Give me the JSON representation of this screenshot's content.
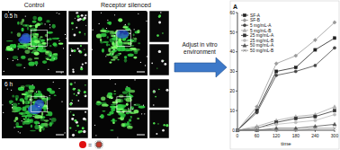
{
  "panels": {
    "control": "Control",
    "silenced": "Receptor silenced",
    "times": [
      "0.5 h",
      "6 h"
    ]
  },
  "arrow_label": "Adjust in vitro environment",
  "icon_equals": "=",
  "chart_data": {
    "type": "line",
    "title": "A",
    "x_label": "time",
    "x": [
      0,
      60,
      120,
      180,
      240,
      300
    ],
    "xlim": [
      0,
      300
    ],
    "xticks": [
      0,
      60,
      120,
      180,
      240,
      300
    ],
    "ylim": [
      0,
      60
    ],
    "yticks": [
      0,
      10,
      20,
      30,
      40,
      50,
      60
    ],
    "legend": "top-left",
    "series": [
      {
        "name": "SF-A",
        "color": "#222222",
        "marker": "square",
        "values": [
          0,
          10,
          30,
          32,
          41,
          47
        ]
      },
      {
        "name": "SF-B",
        "color": "#999999",
        "marker": "diamond",
        "values": [
          0,
          12,
          34,
          38,
          46,
          55
        ]
      },
      {
        "name": "5 mg/mL-A",
        "color": "#444444",
        "marker": "circle",
        "values": [
          0,
          9,
          28,
          30,
          33,
          42
        ]
      },
      {
        "name": "5 mg/mL-B",
        "color": "#aaaaaa",
        "marker": "triangle",
        "values": [
          0,
          2,
          5,
          7,
          8,
          12
        ]
      },
      {
        "name": "25 mg/mL-A",
        "color": "#333333",
        "marker": "square",
        "values": [
          0,
          1,
          4,
          6,
          7,
          10
        ]
      },
      {
        "name": "25 mg/mL-B",
        "color": "#bbbbbb",
        "marker": "circle",
        "values": [
          0,
          1,
          3,
          4,
          5,
          8
        ]
      },
      {
        "name": "50 mg/mL-A",
        "color": "#555555",
        "marker": "triangle",
        "values": [
          0,
          0,
          1,
          1,
          2,
          3
        ]
      },
      {
        "name": "50 mg/mL-B",
        "color": "#888888",
        "marker": "x",
        "values": [
          0,
          0,
          0,
          0,
          1,
          1
        ]
      }
    ]
  }
}
